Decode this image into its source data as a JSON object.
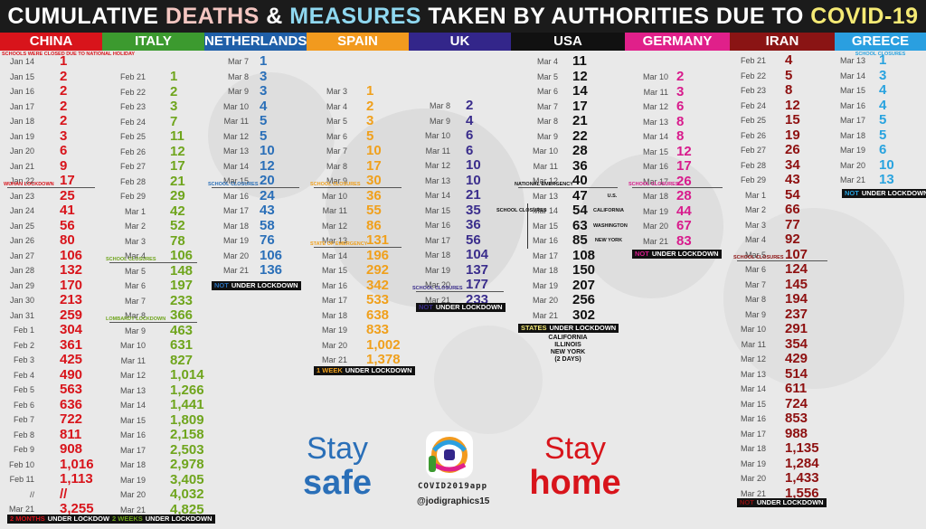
{
  "title": {
    "part1": "CUMULATIVE ",
    "part2": "DEATHS",
    "part3": " & ",
    "part4": "MEASURES",
    "part5": " TAKEN BY AUTHORITIES DUE TO ",
    "part6": "COVID-19"
  },
  "colors": {
    "title_deaths": "#f4c6c1",
    "title_measures": "#8fd8f0",
    "title_covid": "#f5ea74",
    "stay_safe": "#2a6fb8",
    "stay_home": "#d8141b"
  },
  "chart_data": {
    "type": "table",
    "countries": [
      {
        "name": "CHINA",
        "header_color": "#d8141b",
        "value_color": "#d8141b",
        "note_top": "SCHOOLS WERE CLOSED DUE TO NATIONAL HOLIDAY",
        "dates": [
          "Jan 14",
          "Jan 15",
          "Jan 16",
          "Jan 17",
          "Jan 18",
          "Jan 19",
          "Jan 20",
          "Jan 21",
          "Jan 22",
          "Jan 23",
          "Jan 24",
          "Jan 25",
          "Jan 26",
          "Jan 27",
          "Jan 28",
          "Jan 29",
          "Jan 30",
          "Jan 31",
          "Feb 1",
          "Feb 2",
          "Feb 3",
          "Feb 4",
          "Feb 5",
          "Feb 6",
          "Feb 7",
          "Feb 8",
          "Feb 9",
          "Feb 10",
          "Feb 11",
          "//",
          "Mar 21"
        ],
        "values": [
          "1",
          "2",
          "2",
          "2",
          "2",
          "3",
          "6",
          "9",
          "17",
          "25",
          "41",
          "56",
          "80",
          "106",
          "132",
          "170",
          "213",
          "259",
          "304",
          "361",
          "425",
          "490",
          "563",
          "636",
          "722",
          "811",
          "908",
          "1,016",
          "1,113",
          "//",
          "3,255"
        ],
        "marks": [
          {
            "after_row": 8,
            "label": "WUHAN LOCKDOWN"
          }
        ],
        "lockdown_highlight": "2 MONTHS",
        "lockdown_text": "UNDER LOCKDOWN"
      },
      {
        "name": "ITALY",
        "header_color": "#3c9a2f",
        "value_color": "#6fa51d",
        "dates": [
          "Feb 21",
          "Feb 22",
          "Feb 23",
          "Feb 24",
          "Feb 25",
          "Feb 26",
          "Feb 27",
          "Feb 28",
          "Feb 29",
          "Mar 1",
          "Mar 2",
          "Mar 3",
          "Mar 4",
          "Mar 5",
          "Mar 6",
          "Mar 7",
          "Mar 8",
          "Mar 9",
          "Mar 10",
          "Mar 11",
          "Mar 12",
          "Mar 13",
          "Mar 14",
          "Mar 15",
          "Mar 16",
          "Mar 17",
          "Mar 18",
          "Mar 19",
          "Mar 20",
          "Mar 21"
        ],
        "values": [
          "1",
          "2",
          "3",
          "7",
          "11",
          "12",
          "17",
          "21",
          "29",
          "42",
          "52",
          "78",
          "106",
          "148",
          "197",
          "233",
          "366",
          "463",
          "631",
          "827",
          "1,014",
          "1,266",
          "1,441",
          "1,809",
          "2,158",
          "2,503",
          "2,978",
          "3,405",
          "4,032",
          "4,825"
        ],
        "marks": [
          {
            "after_row": 12,
            "label": "SCHOOL CLOSURES"
          },
          {
            "after_row": 16,
            "label": "LOMBARDY LOCKDOWN"
          }
        ],
        "lockdown_highlight": "2 WEEKS",
        "lockdown_text": "UNDER LOCKDOWN"
      },
      {
        "name": "NETHERLANDS",
        "header_color": "#1f5fa8",
        "value_color": "#2a6fb8",
        "dates": [
          "Mar 7",
          "Mar 8",
          "Mar 9",
          "Mar 10",
          "Mar 11",
          "Mar 12",
          "Mar 13",
          "Mar 14",
          "Mar 15",
          "Mar 16",
          "Mar 17",
          "Mar 18",
          "Mar 19",
          "Mar 20",
          "Mar 21"
        ],
        "values": [
          "1",
          "3",
          "3",
          "4",
          "5",
          "5",
          "10",
          "12",
          "20",
          "24",
          "43",
          "58",
          "76",
          "106",
          "136"
        ],
        "marks": [
          {
            "after_row": 8,
            "label": "SCHOOL CLOSURES"
          }
        ],
        "lockdown_highlight": "NOT",
        "lockdown_text": "UNDER LOCKDOWN"
      },
      {
        "name": "SPAIN",
        "header_color": "#f29a1e",
        "value_color": "#f0a01c",
        "dates": [
          "Mar 3",
          "Mar 4",
          "Mar 5",
          "Mar 6",
          "Mar 7",
          "Mar 8",
          "Mar 9",
          "Mar 10",
          "Mar 11",
          "Mar 12",
          "Mar 13",
          "Mar 14",
          "Mar 15",
          "Mar 16",
          "Mar 17",
          "Mar 18",
          "Mar 19",
          "Mar 20",
          "Mar 21"
        ],
        "values": [
          "1",
          "2",
          "3",
          "5",
          "10",
          "17",
          "30",
          "36",
          "55",
          "86",
          "131",
          "196",
          "292",
          "342",
          "533",
          "638",
          "833",
          "1,002",
          "1,378"
        ],
        "marks": [
          {
            "after_row": 6,
            "label": "SCHOOL CLOSURES"
          },
          {
            "after_row": 10,
            "label": "STATE OF EMERGENCY"
          }
        ],
        "lockdown_highlight": "1 WEEK",
        "lockdown_text": "UNDER LOCKDOWN"
      },
      {
        "name": "UK",
        "header_color": "#33268a",
        "value_color": "#3a2d8c",
        "dates": [
          "Mar 8",
          "Mar 9",
          "Mar 10",
          "Mar 11",
          "Mar 12",
          "Mar 13",
          "Mar 14",
          "Mar 15",
          "Mar 16",
          "Mar 17",
          "Mar 18",
          "Mar 19",
          "Mar 20",
          "Mar 21"
        ],
        "values": [
          "2",
          "4",
          "6",
          "6",
          "10",
          "10",
          "21",
          "35",
          "36",
          "56",
          "104",
          "137",
          "177",
          "233"
        ],
        "marks": [
          {
            "after_row": 12,
            "label": "SCHOOL CLOSURES"
          }
        ],
        "lockdown_highlight": "NOT",
        "lockdown_text": "UNDER LOCKDOWN"
      },
      {
        "name": "USA",
        "header_color": "#111111",
        "value_color": "#111111",
        "dates": [
          "Mar 4",
          "Mar 5",
          "Mar 6",
          "Mar 7",
          "Mar 8",
          "Mar 9",
          "Mar 10",
          "Mar 11",
          "Mar 12",
          "Mar 13",
          "Mar 14",
          "Mar 15",
          "Mar 16",
          "Mar 17",
          "Mar 18",
          "Mar 19",
          "Mar 20",
          "Mar 21"
        ],
        "values": [
          "11",
          "12",
          "14",
          "17",
          "21",
          "22",
          "28",
          "36",
          "40",
          "47",
          "54",
          "63",
          "85",
          "108",
          "150",
          "207",
          "256",
          "302"
        ],
        "marks": [
          {
            "after_row": 8,
            "label": "NATIONAL EMERGENCY"
          }
        ],
        "side_notes": [
          "U.S.",
          "CALIFORNIA",
          "WASHINGTON",
          "NEW YORK",
          "SCHOOL CLOSURES"
        ],
        "lockdown_highlight": "STATES",
        "lockdown_text": "UNDER LOCKDOWN",
        "states_list": [
          "CALIFORNIA",
          "ILLINOIS",
          "NEW YORK",
          "(2 DAYS)"
        ]
      },
      {
        "name": "GERMANY",
        "header_color": "#e0208a",
        "value_color": "#d81b8c",
        "dates": [
          "Mar 10",
          "Mar 11",
          "Mar 12",
          "Mar 13",
          "Mar 14",
          "Mar 15",
          "Mar 16",
          "Mar 17",
          "Mar 18",
          "Mar 19",
          "Mar 20",
          "Mar 21"
        ],
        "values": [
          "2",
          "3",
          "6",
          "8",
          "8",
          "12",
          "17",
          "26",
          "28",
          "44",
          "67",
          "83"
        ],
        "marks": [
          {
            "after_row": 7,
            "label": "SCHOOL CLOSURES"
          }
        ],
        "lockdown_highlight": "NOT",
        "lockdown_text": "UNDER LOCKDOWN"
      },
      {
        "name": "IRAN",
        "header_color": "#8a1414",
        "value_color": "#8e1010",
        "dates": [
          "Feb 21",
          "Feb 22",
          "Feb 23",
          "Feb 24",
          "Feb 25",
          "Feb 26",
          "Feb 27",
          "Feb 28",
          "Feb 29",
          "Mar 1",
          "Mar 2",
          "Mar 3",
          "Mar 4",
          "Mar 5",
          "Mar 6",
          "Mar 7",
          "Mar 8",
          "Mar 9",
          "Mar 10",
          "Mar 11",
          "Mar 12",
          "Mar 13",
          "Mar 14",
          "Mar 15",
          "Mar 16",
          "Mar 17",
          "Mar 18",
          "Mar 19",
          "Mar 20",
          "Mar 21"
        ],
        "values": [
          "4",
          "5",
          "8",
          "12",
          "15",
          "19",
          "26",
          "34",
          "43",
          "54",
          "66",
          "77",
          "92",
          "107",
          "124",
          "145",
          "194",
          "237",
          "291",
          "354",
          "429",
          "514",
          "611",
          "724",
          "853",
          "988",
          "1,135",
          "1,284",
          "1,433",
          "1,556"
        ],
        "marks": [
          {
            "after_row": 13,
            "label": "SCHOOL CLOSURES"
          }
        ],
        "lockdown_highlight": "NOT",
        "lockdown_text": "UNDER LOCKDOWN"
      },
      {
        "name": "GREECE",
        "header_color": "#2a9fe0",
        "value_color": "#29a3df",
        "note_top": "SCHOOL CLOSURES",
        "dates": [
          "Mar 13",
          "Mar 14",
          "Mar 15",
          "Mar 16",
          "Mar 17",
          "Mar 18",
          "Mar 19",
          "Mar 20",
          "Mar 21"
        ],
        "values": [
          "1",
          "3",
          "4",
          "4",
          "5",
          "5",
          "6",
          "10",
          "13"
        ],
        "marks": [],
        "lockdown_highlight": "NOT",
        "lockdown_text": "UNDER LOCKDOWN"
      }
    ]
  },
  "footer": {
    "stay_left_1": "Stay",
    "stay_left_2": "safe",
    "stay_right_1": "Stay",
    "stay_right_2": "home",
    "app_name": "COVID2019app",
    "handle": "@jodigraphics15"
  }
}
